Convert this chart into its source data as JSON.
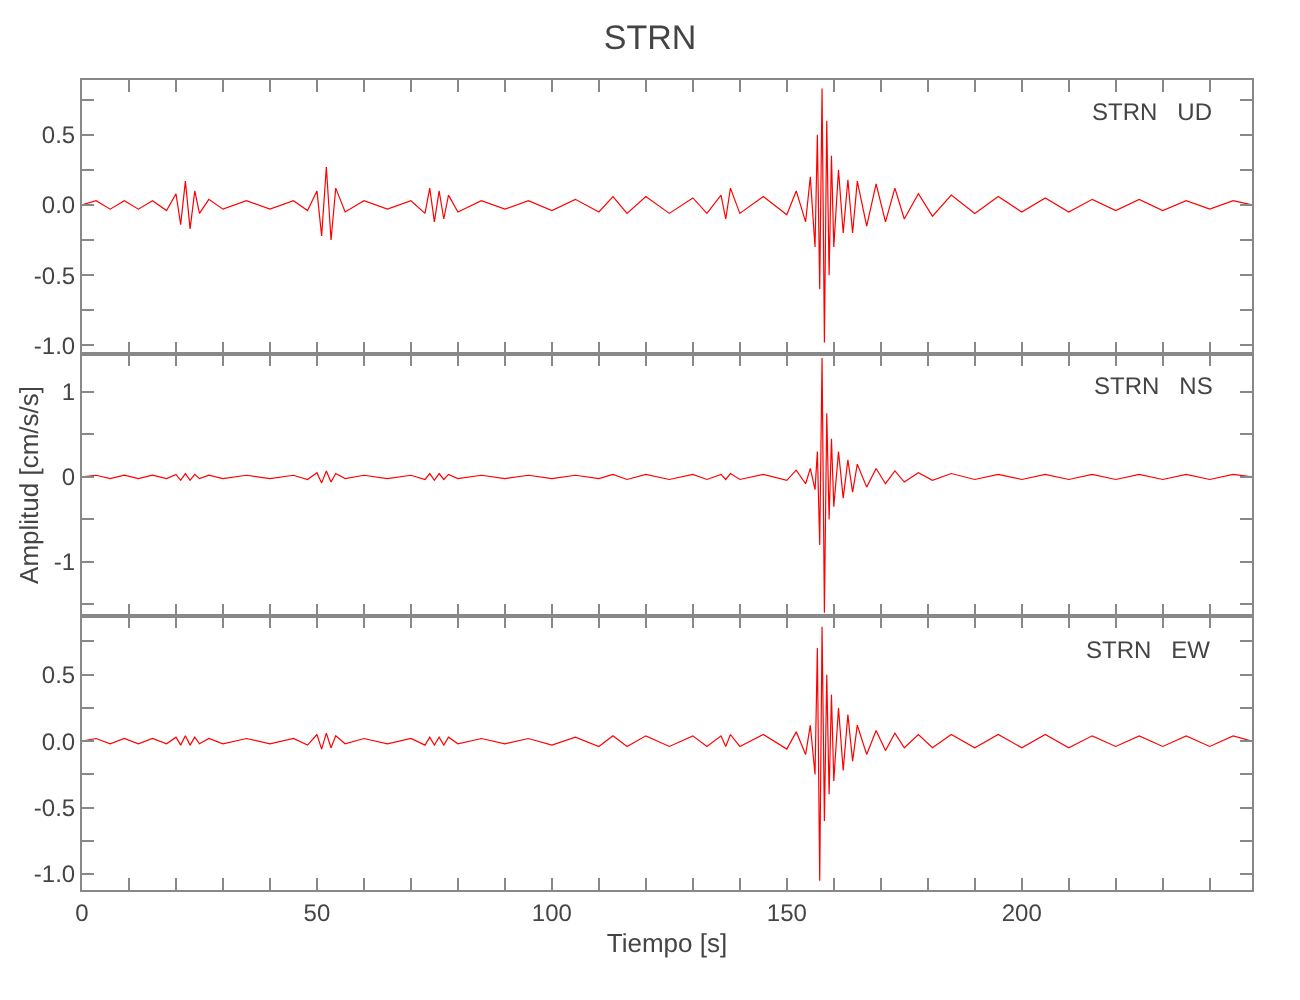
{
  "chart_data": [
    {
      "type": "line",
      "title": "STRN",
      "annotations": [
        "STRN   UD"
      ],
      "tick_labels": "y",
      "x": [
        0,
        3,
        6,
        9,
        12,
        15,
        18,
        20,
        21,
        22,
        23,
        24,
        25,
        27,
        30,
        35,
        40,
        45,
        48,
        50,
        51,
        52,
        53,
        54,
        56,
        60,
        65,
        70,
        73,
        74,
        75,
        76,
        77,
        78,
        80,
        85,
        90,
        95,
        100,
        105,
        110,
        113,
        116,
        120,
        125,
        130,
        133,
        136,
        137,
        138,
        140,
        145,
        150,
        152,
        154,
        155,
        156,
        156.5,
        157,
        157.5,
        158,
        158.5,
        159,
        159.5,
        160,
        161,
        162,
        163,
        164,
        165,
        167,
        169,
        171,
        173,
        175,
        178,
        181,
        185,
        190,
        195,
        200,
        205,
        210,
        215,
        220,
        225,
        230,
        235,
        240,
        245,
        249
      ],
      "series": [
        {
          "color": "#ff0000",
          "values": [
            0,
            0.03,
            -0.03,
            0.03,
            -0.03,
            0.03,
            -0.04,
            0.08,
            -0.14,
            0.17,
            -0.17,
            0.1,
            -0.06,
            0.04,
            -0.03,
            0.03,
            -0.03,
            0.03,
            -0.04,
            0.1,
            -0.22,
            0.27,
            -0.25,
            0.12,
            -0.05,
            0.03,
            -0.03,
            0.03,
            -0.06,
            0.12,
            -0.12,
            0.1,
            -0.1,
            0.07,
            -0.05,
            0.03,
            -0.03,
            0.03,
            -0.04,
            0.04,
            -0.05,
            0.06,
            -0.06,
            0.06,
            -0.06,
            0.05,
            -0.06,
            0.07,
            -0.1,
            0.12,
            -0.06,
            0.06,
            -0.07,
            0.1,
            -0.12,
            0.2,
            -0.3,
            0.5,
            -0.6,
            0.83,
            -0.98,
            0.6,
            -0.5,
            0.35,
            -0.3,
            0.25,
            -0.2,
            0.18,
            -0.2,
            0.17,
            -0.15,
            0.15,
            -0.12,
            0.12,
            -0.1,
            0.08,
            -0.08,
            0.07,
            -0.06,
            0.06,
            -0.05,
            0.05,
            -0.05,
            0.04,
            -0.04,
            0.04,
            -0.04,
            0.03,
            -0.03,
            0.03,
            0
          ]
        }
      ],
      "xlim": [
        0,
        249
      ],
      "xticks": [
        0,
        {
          "value": 10,
          "label": null
        },
        {
          "value": 20,
          "label": null
        },
        {
          "value": 30,
          "label": null
        },
        {
          "value": 40,
          "label": null
        },
        50,
        {
          "value": 60,
          "label": null
        },
        {
          "value": 70,
          "label": null
        },
        {
          "value": 80,
          "label": null
        },
        {
          "value": 90,
          "label": null
        },
        100,
        {
          "value": 110,
          "label": null
        },
        {
          "value": 120,
          "label": null
        },
        {
          "value": 130,
          "label": null
        },
        {
          "value": 140,
          "label": null
        },
        150,
        {
          "value": 160,
          "label": null
        },
        {
          "value": 170,
          "label": null
        },
        {
          "value": 180,
          "label": null
        },
        {
          "value": 190,
          "label": null
        },
        200,
        {
          "value": 210,
          "label": null
        },
        {
          "value": 220,
          "label": null
        },
        {
          "value": 230,
          "label": null
        },
        {
          "value": 240,
          "label": null
        }
      ],
      "ylim": [
        -1.06,
        0.89
      ],
      "yticks": [
        {
          "value": 0.75,
          "label": null
        },
        {
          "value": 0.5,
          "label": "0.5"
        },
        {
          "value": 0.25,
          "label": null
        },
        {
          "value": 0,
          "label": "0.0"
        },
        {
          "value": -0.25,
          "label": null
        },
        {
          "value": -0.5,
          "label": "-0.5"
        },
        {
          "value": -0.75,
          "label": null
        },
        {
          "value": -1,
          "label": "-1.0"
        }
      ]
    },
    {
      "type": "line",
      "ylabel": "Amplitud [cm/s/s]",
      "annotations": [
        "STRN   NS"
      ],
      "tick_labels": "y",
      "x": [
        0,
        3,
        6,
        9,
        12,
        15,
        18,
        20,
        21,
        22,
        23,
        24,
        25,
        27,
        30,
        35,
        40,
        45,
        48,
        50,
        51,
        52,
        53,
        54,
        56,
        60,
        65,
        70,
        73,
        74,
        75,
        76,
        77,
        78,
        80,
        85,
        90,
        95,
        100,
        105,
        110,
        113,
        116,
        120,
        125,
        130,
        133,
        136,
        137,
        138,
        140,
        145,
        150,
        152,
        154,
        155,
        156,
        156.5,
        157,
        157.5,
        158,
        158.5,
        159,
        159.5,
        160,
        161,
        162,
        163,
        164,
        165,
        167,
        169,
        171,
        173,
        175,
        178,
        181,
        185,
        190,
        195,
        200,
        205,
        210,
        215,
        220,
        225,
        230,
        235,
        240,
        245,
        249
      ],
      "series": [
        {
          "color": "#ff0000",
          "values": [
            0,
            0.02,
            -0.02,
            0.02,
            -0.02,
            0.02,
            -0.02,
            0.03,
            -0.04,
            0.04,
            -0.04,
            0.03,
            -0.02,
            0.02,
            -0.02,
            0.02,
            -0.02,
            0.02,
            -0.03,
            0.05,
            -0.07,
            0.07,
            -0.06,
            0.04,
            -0.02,
            0.02,
            -0.02,
            0.02,
            -0.03,
            0.04,
            -0.04,
            0.04,
            -0.03,
            0.03,
            -0.02,
            0.02,
            -0.02,
            0.02,
            -0.02,
            0.02,
            -0.02,
            0.03,
            -0.03,
            0.03,
            -0.03,
            0.03,
            -0.03,
            0.03,
            -0.03,
            0.04,
            -0.03,
            0.03,
            -0.04,
            0.08,
            -0.08,
            0.1,
            -0.15,
            0.3,
            -0.8,
            1.4,
            -1.6,
            0.75,
            -0.5,
            0.45,
            -0.35,
            0.3,
            -0.25,
            0.2,
            -0.18,
            0.15,
            -0.12,
            0.1,
            -0.08,
            0.07,
            -0.06,
            0.05,
            -0.04,
            0.04,
            -0.03,
            0.03,
            -0.03,
            0.03,
            -0.03,
            0.03,
            -0.03,
            0.03,
            -0.03,
            0.03,
            -0.03,
            0.03,
            0
          ]
        }
      ],
      "xlim": [
        0,
        249
      ],
      "xticks": [
        0,
        {
          "value": 10,
          "label": null
        },
        {
          "value": 20,
          "label": null
        },
        {
          "value": 30,
          "label": null
        },
        {
          "value": 40,
          "label": null
        },
        50,
        {
          "value": 60,
          "label": null
        },
        {
          "value": 70,
          "label": null
        },
        {
          "value": 80,
          "label": null
        },
        {
          "value": 90,
          "label": null
        },
        100,
        {
          "value": 110,
          "label": null
        },
        {
          "value": 120,
          "label": null
        },
        {
          "value": 130,
          "label": null
        },
        {
          "value": 140,
          "label": null
        },
        150,
        {
          "value": 160,
          "label": null
        },
        {
          "value": 170,
          "label": null
        },
        {
          "value": 180,
          "label": null
        },
        {
          "value": 190,
          "label": null
        },
        200,
        {
          "value": 210,
          "label": null
        },
        {
          "value": 220,
          "label": null
        },
        {
          "value": 230,
          "label": null
        },
        {
          "value": 240,
          "label": null
        }
      ],
      "ylim": [
        -1.64,
        1.45
      ],
      "yticks": [
        1,
        {
          "value": 0.5,
          "label": null
        },
        0,
        {
          "value": -0.5,
          "label": null
        },
        -1,
        {
          "value": -1.5,
          "label": null
        }
      ]
    },
    {
      "type": "line",
      "xlabel": "Tiempo [s]",
      "annotations": [
        "STRN   EW"
      ],
      "x": [
        0,
        3,
        6,
        9,
        12,
        15,
        18,
        20,
        21,
        22,
        23,
        24,
        25,
        27,
        30,
        35,
        40,
        45,
        48,
        50,
        51,
        52,
        53,
        54,
        56,
        60,
        65,
        70,
        73,
        74,
        75,
        76,
        77,
        78,
        80,
        85,
        90,
        95,
        100,
        105,
        110,
        113,
        116,
        120,
        125,
        130,
        133,
        136,
        137,
        138,
        140,
        145,
        150,
        152,
        154,
        155,
        156,
        156.5,
        157,
        157.5,
        158,
        158.5,
        159,
        159.5,
        160,
        161,
        162,
        163,
        164,
        165,
        167,
        169,
        171,
        173,
        175,
        178,
        181,
        185,
        190,
        195,
        200,
        205,
        210,
        215,
        220,
        225,
        230,
        235,
        240,
        245,
        249
      ],
      "series": [
        {
          "color": "#ff0000",
          "values": [
            0,
            0.02,
            -0.02,
            0.02,
            -0.02,
            0.02,
            -0.02,
            0.03,
            -0.03,
            0.04,
            -0.03,
            0.03,
            -0.02,
            0.02,
            -0.02,
            0.02,
            -0.02,
            0.02,
            -0.03,
            0.05,
            -0.06,
            0.06,
            -0.05,
            0.04,
            -0.02,
            0.02,
            -0.02,
            0.02,
            -0.03,
            0.03,
            -0.03,
            0.03,
            -0.03,
            0.03,
            -0.02,
            0.02,
            -0.02,
            0.02,
            -0.03,
            0.03,
            -0.04,
            0.04,
            -0.04,
            0.04,
            -0.04,
            0.04,
            -0.04,
            0.04,
            -0.04,
            0.05,
            -0.04,
            0.05,
            -0.06,
            0.07,
            -0.1,
            0.12,
            -0.25,
            0.7,
            -1.05,
            0.86,
            -0.6,
            0.5,
            -0.4,
            0.35,
            -0.3,
            0.25,
            -0.22,
            0.2,
            -0.15,
            0.12,
            -0.1,
            0.08,
            -0.07,
            0.06,
            -0.05,
            0.05,
            -0.05,
            0.05,
            -0.05,
            0.05,
            -0.05,
            0.05,
            -0.05,
            0.04,
            -0.04,
            0.04,
            -0.04,
            0.04,
            -0.04,
            0.04,
            0
          ]
        }
      ],
      "xlim": [
        0,
        249
      ],
      "xticks": [
        0,
        {
          "value": 10,
          "label": null
        },
        {
          "value": 20,
          "label": null
        },
        {
          "value": 30,
          "label": null
        },
        {
          "value": 40,
          "label": null
        },
        50,
        {
          "value": 60,
          "label": null
        },
        {
          "value": 70,
          "label": null
        },
        {
          "value": 80,
          "label": null
        },
        {
          "value": 90,
          "label": null
        },
        100,
        {
          "value": 110,
          "label": null
        },
        {
          "value": 120,
          "label": null
        },
        {
          "value": 130,
          "label": null
        },
        {
          "value": 140,
          "label": null
        },
        150,
        {
          "value": 160,
          "label": null
        },
        {
          "value": 170,
          "label": null
        },
        {
          "value": 180,
          "label": null
        },
        {
          "value": 190,
          "label": null
        },
        200,
        {
          "value": 210,
          "label": null
        },
        {
          "value": 220,
          "label": null
        },
        {
          "value": 230,
          "label": null
        },
        {
          "value": 240,
          "label": null
        }
      ],
      "ylim": [
        -1.12,
        0.94
      ],
      "yticks": [
        {
          "value": 0.75,
          "label": null
        },
        {
          "value": 0.5,
          "label": "0.5"
        },
        {
          "value": 0.25,
          "label": null
        },
        {
          "value": 0,
          "label": "0.0"
        },
        {
          "value": -0.25,
          "label": null
        },
        {
          "value": -0.5,
          "label": "-0.5"
        },
        {
          "value": -0.75,
          "label": null
        },
        {
          "value": -1,
          "label": "-1.0"
        }
      ]
    }
  ]
}
